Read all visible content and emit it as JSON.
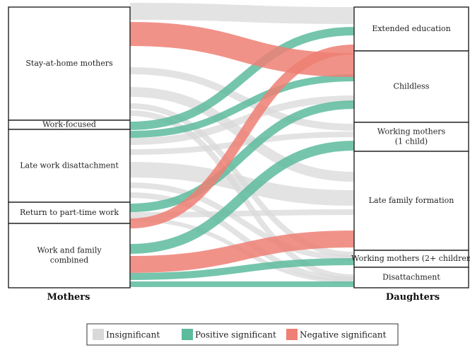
{
  "colors": {
    "insignificant": "#d9d9d9",
    "positive": "#5dbb9d",
    "negative": "#ee7f74",
    "border": "#222222"
  },
  "column_titles": {
    "left": "Mothers",
    "right": "Daughters"
  },
  "left_nodes": [
    {
      "id": "stay",
      "label": [
        "Stay-at-home mothers"
      ]
    },
    {
      "id": "workf",
      "label": [
        "Work-focused"
      ]
    },
    {
      "id": "late",
      "label": [
        "Late work disattachment"
      ]
    },
    {
      "id": "return",
      "label": [
        "Return to part-time work"
      ]
    },
    {
      "id": "wfc",
      "label": [
        "Work and family",
        "combined"
      ]
    }
  ],
  "right_nodes": [
    {
      "id": "ext",
      "label": [
        "Extended education"
      ]
    },
    {
      "id": "child",
      "label": [
        "Childless"
      ]
    },
    {
      "id": "wm1",
      "label": [
        "Working mothers",
        "(1 child)"
      ]
    },
    {
      "id": "lff",
      "label": [
        "Late family formation"
      ]
    },
    {
      "id": "wm2",
      "label": [
        "Working mothers (2+ children"
      ]
    },
    {
      "id": "dis",
      "label": [
        "Disattachment"
      ]
    }
  ],
  "flows": [
    {
      "source": "stay",
      "target": "ext",
      "sig": "insignificant"
    },
    {
      "source": "stay",
      "target": "child",
      "sig": "negative"
    },
    {
      "source": "stay",
      "target": "wm1",
      "sig": "insignificant"
    },
    {
      "source": "stay",
      "target": "lff",
      "sig": "insignificant"
    },
    {
      "source": "stay",
      "target": "wm2",
      "sig": "insignificant"
    },
    {
      "source": "stay",
      "target": "dis",
      "sig": "insignificant"
    },
    {
      "source": "workf",
      "target": "ext",
      "sig": "positive"
    },
    {
      "source": "workf",
      "target": "child",
      "sig": "positive"
    },
    {
      "source": "late",
      "target": "child",
      "sig": "insignificant"
    },
    {
      "source": "late",
      "target": "wm1",
      "sig": "insignificant"
    },
    {
      "source": "late",
      "target": "lff",
      "sig": "insignificant"
    },
    {
      "source": "late",
      "target": "wm2",
      "sig": "insignificant"
    },
    {
      "source": "late",
      "target": "dis",
      "sig": "insignificant"
    },
    {
      "source": "return",
      "target": "child",
      "sig": "negative"
    },
    {
      "source": "return",
      "target": "wm1",
      "sig": "positive"
    },
    {
      "source": "return",
      "target": "lff",
      "sig": "insignificant"
    },
    {
      "source": "return",
      "target": "dis",
      "sig": "insignificant"
    },
    {
      "source": "wfc",
      "target": "wm1",
      "sig": "positive"
    },
    {
      "source": "wfc",
      "target": "lff",
      "sig": "negative"
    },
    {
      "source": "wfc",
      "target": "wm2",
      "sig": "positive"
    },
    {
      "source": "wfc",
      "target": "dis",
      "sig": "positive"
    }
  ],
  "legend": [
    {
      "key": "insignificant",
      "label": "Insignificant"
    },
    {
      "key": "positive",
      "label": "Positive significant"
    },
    {
      "key": "negative",
      "label": "Negative significant"
    }
  ]
}
